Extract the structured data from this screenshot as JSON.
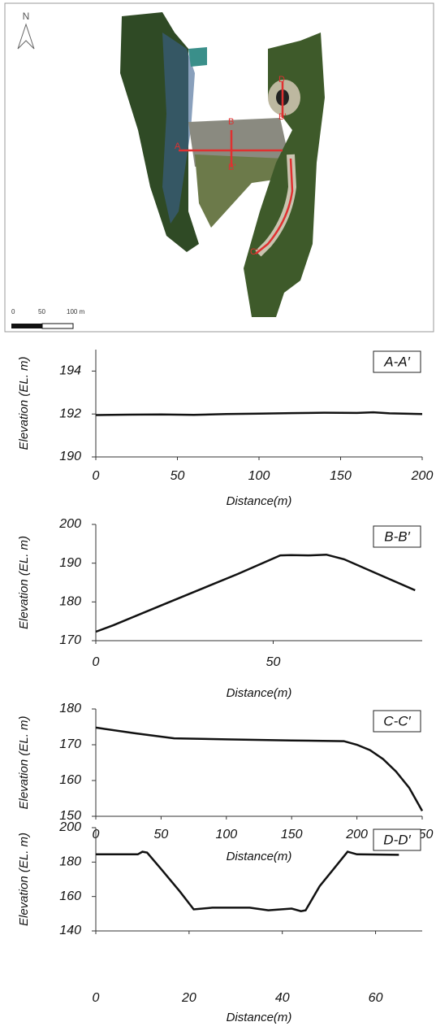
{
  "map": {
    "north": "N",
    "scale_labels": [
      "0",
      "50",
      "100 m"
    ],
    "section_labels": [
      "A",
      "B",
      "B'",
      "D",
      "B'",
      "C'"
    ]
  },
  "chart_data": [
    {
      "type": "line",
      "annotation": "A-A′",
      "y_label": "Elevation (EL. m)",
      "x_label": "Distance(m)",
      "color": "#111111",
      "x": [
        0,
        20,
        40,
        60,
        80,
        100,
        120,
        140,
        160,
        170,
        180,
        200
      ],
      "values": [
        191.95,
        191.97,
        191.98,
        191.96,
        192.0,
        192.02,
        192.04,
        192.06,
        192.05,
        192.08,
        192.03,
        192.0
      ],
      "xlim": [
        0,
        200
      ],
      "xticks": [
        0,
        50,
        100,
        150,
        200
      ],
      "ylim": [
        190,
        195
      ],
      "yticks": [
        190,
        192,
        194
      ]
    },
    {
      "type": "line",
      "annotation": "B-B′",
      "y_label": "Elevation (EL. m)",
      "x_label": "Distance(m)",
      "color": "#111111",
      "x": [
        0,
        5,
        20,
        40,
        52,
        55,
        60,
        65,
        70,
        80,
        90
      ],
      "values": [
        172.3,
        174,
        179.7,
        187.2,
        192,
        192.1,
        192,
        192.2,
        191,
        187,
        183
      ],
      "xlim": [
        0,
        92
      ],
      "xticks": [
        0,
        50
      ],
      "ylim": [
        170,
        200
      ],
      "yticks": [
        170,
        180,
        190,
        200
      ]
    },
    {
      "type": "line",
      "annotation": "C-C′",
      "y_label": "Elevation (EL. m)",
      "x_label": "Distance(m)",
      "color": "#111111",
      "x": [
        0,
        30,
        60,
        100,
        150,
        190,
        200,
        210,
        220,
        230,
        240,
        250
      ],
      "values": [
        174.8,
        173.2,
        171.8,
        171.5,
        171.2,
        171,
        170,
        168.5,
        166,
        162.5,
        158,
        151.5
      ],
      "xlim": [
        0,
        250
      ],
      "xticks": [
        0,
        50,
        100,
        150,
        200,
        250
      ],
      "ylim": [
        150,
        180
      ],
      "yticks": [
        150,
        160,
        170,
        180
      ]
    },
    {
      "type": "line",
      "annotation": "D-D′",
      "y_label": "Elevation (EL. m)",
      "x_label": "Distance(m)",
      "color": "#111111",
      "x": [
        0,
        9,
        10,
        11,
        14,
        18,
        21,
        25,
        33,
        37,
        42,
        44,
        45,
        48,
        51,
        54,
        56,
        65
      ],
      "values": [
        184.5,
        184.5,
        186,
        185.5,
        176,
        163,
        152.5,
        153.5,
        153.5,
        152,
        153,
        151.5,
        152,
        166,
        176,
        186,
        184.5,
        184.2
      ],
      "xlim": [
        0,
        70
      ],
      "xticks": [
        0,
        20,
        40,
        60
      ],
      "ylim": [
        140,
        200
      ],
      "yticks": [
        140,
        160,
        180,
        200
      ]
    }
  ]
}
